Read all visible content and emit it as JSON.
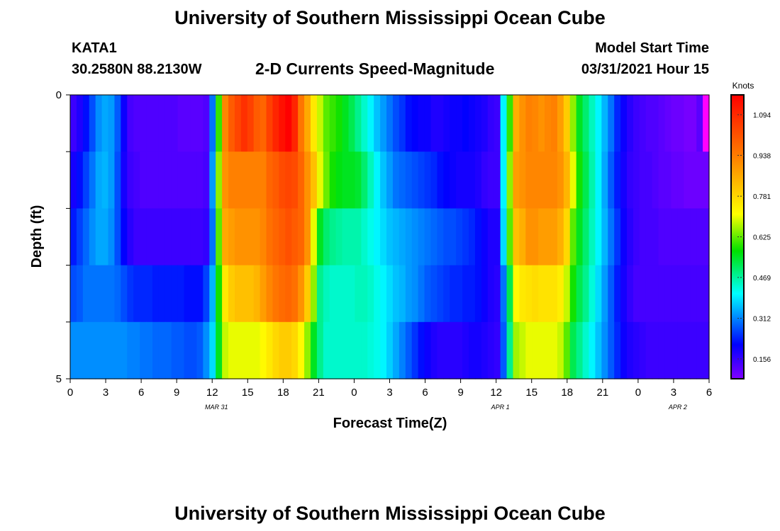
{
  "header": {
    "title": "University of Southern Mississippi Ocean Cube",
    "station": "KATA1",
    "coords": "30.2580N  88.2130W",
    "subtitle": "2-D Currents Speed-Magnitude",
    "model_label": "Model Start Time",
    "model_time": "03/31/2021 Hour 15"
  },
  "footer": {
    "title": "University of Southern Mississippi Ocean Cube"
  },
  "chart_data": {
    "type": "heatmap",
    "title": "2-D Currents Speed-Magnitude",
    "xlabel": "Forecast Time(Z)",
    "ylabel": "Depth (ft)",
    "x_tick_values": [
      0,
      3,
      6,
      9,
      12,
      15,
      18,
      21,
      24,
      27,
      30,
      33,
      36,
      39,
      42,
      45,
      48,
      51,
      54
    ],
    "x_tick_labels": [
      "0",
      "3",
      "6",
      "9",
      "12",
      "15",
      "18",
      "21",
      "0",
      "3",
      "6",
      "9",
      "12",
      "15",
      "18",
      "21",
      "0",
      "3",
      "6"
    ],
    "date_labels": [
      {
        "hour": 12,
        "label": "MAR 31"
      },
      {
        "hour": 36,
        "label": "APR 1"
      },
      {
        "hour": 51,
        "label": "APR 2"
      }
    ],
    "xlim": [
      0,
      54
    ],
    "y_tick_labels": [
      "0",
      "5"
    ],
    "ylim": [
      0,
      5
    ],
    "depth_rows": [
      0,
      1,
      2,
      3,
      4
    ],
    "row_height_ft": 1,
    "hours_per_column": 1,
    "colorbar": {
      "label": "Knots",
      "min": 0.08,
      "max": 1.17,
      "ticks": [
        0.156,
        0.312,
        0.469,
        0.625,
        0.781,
        0.938,
        1.094
      ],
      "tick_labels": [
        "0.156",
        "0.312",
        "0.469",
        "0.625",
        "0.781",
        "0.938",
        "1.094"
      ]
    },
    "speed_knots": [
      [
        0.15,
        0.18,
        0.22,
        0.27,
        0.32,
        0.34,
        0.33,
        0.28,
        0.2,
        0.14,
        0.13,
        0.13,
        0.13,
        0.13,
        0.13,
        0.13,
        0.13,
        0.12,
        0.12,
        0.12,
        0.12,
        0.13,
        0.3,
        0.6,
        0.92,
        1.0,
        1.04,
        1.08,
        1.05,
        1.0,
        0.98,
        1.05,
        1.1,
        1.14,
        1.18,
        1.1,
        0.95,
        0.86,
        0.75,
        0.68,
        0.62,
        0.6,
        0.58,
        0.55,
        0.52,
        0.48,
        0.44,
        0.4,
        0.36,
        0.33,
        0.3,
        0.27,
        0.25,
        0.22,
        0.21,
        0.2,
        0.2,
        0.18,
        0.18,
        0.19,
        0.2,
        0.2,
        0.21,
        0.2,
        0.19,
        0.18,
        0.16,
        0.15,
        0.4,
        0.6,
        0.85,
        0.9,
        0.93,
        0.92,
        0.9,
        0.92,
        0.93,
        0.88,
        0.8,
        0.65,
        0.55,
        0.5,
        0.45,
        0.4,
        0.35,
        0.3,
        0.24,
        0.2,
        0.17,
        0.15,
        0.14,
        0.13,
        0.13,
        0.12,
        0.11,
        0.1,
        0.1,
        0.09,
        0.09,
        0.12,
        0.05
      ],
      [
        0.19,
        0.22,
        0.26,
        0.3,
        0.34,
        0.35,
        0.33,
        0.27,
        0.19,
        0.15,
        0.14,
        0.13,
        0.13,
        0.13,
        0.13,
        0.13,
        0.13,
        0.13,
        0.13,
        0.13,
        0.13,
        0.14,
        0.33,
        0.65,
        0.9,
        0.93,
        0.93,
        0.93,
        0.93,
        0.93,
        0.93,
        0.98,
        1.0,
        1.03,
        1.04,
        1.03,
        0.98,
        0.9,
        0.82,
        0.7,
        0.63,
        0.58,
        0.56,
        0.55,
        0.55,
        0.54,
        0.5,
        0.45,
        0.4,
        0.36,
        0.33,
        0.3,
        0.29,
        0.28,
        0.27,
        0.26,
        0.25,
        0.24,
        0.22,
        0.21,
        0.2,
        0.19,
        0.19,
        0.19,
        0.18,
        0.16,
        0.15,
        0.15,
        0.4,
        0.65,
        0.88,
        0.9,
        0.92,
        0.92,
        0.92,
        0.92,
        0.92,
        0.9,
        0.84,
        0.7,
        0.58,
        0.52,
        0.46,
        0.4,
        0.34,
        0.28,
        0.23,
        0.19,
        0.16,
        0.15,
        0.14,
        0.14,
        0.13,
        0.12,
        0.12,
        0.11,
        0.11,
        0.1,
        0.1,
        0.1,
        0.1
      ],
      [
        0.23,
        0.26,
        0.29,
        0.32,
        0.34,
        0.34,
        0.32,
        0.27,
        0.21,
        0.17,
        0.15,
        0.15,
        0.15,
        0.15,
        0.15,
        0.15,
        0.15,
        0.15,
        0.15,
        0.15,
        0.15,
        0.16,
        0.3,
        0.62,
        0.86,
        0.88,
        0.9,
        0.9,
        0.9,
        0.9,
        0.92,
        0.96,
        0.98,
        1.0,
        1.02,
        1.0,
        0.98,
        0.9,
        0.7,
        0.55,
        0.5,
        0.48,
        0.47,
        0.46,
        0.46,
        0.46,
        0.44,
        0.42,
        0.4,
        0.38,
        0.36,
        0.35,
        0.34,
        0.33,
        0.32,
        0.31,
        0.3,
        0.29,
        0.28,
        0.27,
        0.27,
        0.26,
        0.25,
        0.24,
        0.22,
        0.2,
        0.18,
        0.18,
        0.38,
        0.62,
        0.82,
        0.85,
        0.9,
        0.9,
        0.88,
        0.88,
        0.88,
        0.85,
        0.78,
        0.62,
        0.55,
        0.5,
        0.45,
        0.4,
        0.35,
        0.3,
        0.25,
        0.2,
        0.17,
        0.15,
        0.14,
        0.14,
        0.14,
        0.13,
        0.13,
        0.13,
        0.13,
        0.13,
        0.13,
        0.13,
        0.13
      ],
      [
        0.27,
        0.28,
        0.3,
        0.3,
        0.3,
        0.3,
        0.3,
        0.29,
        0.27,
        0.25,
        0.24,
        0.24,
        0.24,
        0.23,
        0.23,
        0.23,
        0.23,
        0.23,
        0.22,
        0.22,
        0.22,
        0.26,
        0.35,
        0.58,
        0.75,
        0.8,
        0.82,
        0.82,
        0.82,
        0.84,
        0.88,
        0.92,
        0.95,
        0.97,
        0.98,
        0.96,
        0.9,
        0.8,
        0.65,
        0.48,
        0.45,
        0.44,
        0.44,
        0.44,
        0.44,
        0.45,
        0.45,
        0.44,
        0.42,
        0.4,
        0.38,
        0.36,
        0.35,
        0.33,
        0.32,
        0.3,
        0.28,
        0.27,
        0.26,
        0.25,
        0.24,
        0.24,
        0.23,
        0.23,
        0.22,
        0.2,
        0.18,
        0.17,
        0.3,
        0.52,
        0.72,
        0.75,
        0.76,
        0.77,
        0.76,
        0.76,
        0.76,
        0.74,
        0.68,
        0.58,
        0.52,
        0.48,
        0.43,
        0.38,
        0.33,
        0.28,
        0.23,
        0.19,
        0.16,
        0.14,
        0.14,
        0.14,
        0.14,
        0.14,
        0.14,
        0.14,
        0.14,
        0.14,
        0.14,
        0.14,
        0.14
      ],
      [
        0.32,
        0.32,
        0.32,
        0.32,
        0.32,
        0.32,
        0.32,
        0.32,
        0.32,
        0.31,
        0.31,
        0.3,
        0.3,
        0.29,
        0.29,
        0.29,
        0.28,
        0.28,
        0.27,
        0.27,
        0.28,
        0.32,
        0.38,
        0.55,
        0.68,
        0.7,
        0.7,
        0.7,
        0.7,
        0.7,
        0.72,
        0.75,
        0.78,
        0.8,
        0.8,
        0.78,
        0.72,
        0.65,
        0.55,
        0.48,
        0.44,
        0.44,
        0.44,
        0.44,
        0.44,
        0.44,
        0.44,
        0.43,
        0.42,
        0.4,
        0.37,
        0.34,
        0.31,
        0.28,
        0.25,
        0.22,
        0.2,
        0.18,
        0.17,
        0.17,
        0.17,
        0.17,
        0.18,
        0.19,
        0.19,
        0.18,
        0.17,
        0.16,
        0.28,
        0.48,
        0.66,
        0.68,
        0.7,
        0.7,
        0.7,
        0.7,
        0.7,
        0.68,
        0.62,
        0.52,
        0.48,
        0.44,
        0.4,
        0.36,
        0.32,
        0.28,
        0.24,
        0.2,
        0.18,
        0.17,
        0.16,
        0.15,
        0.15,
        0.15,
        0.15,
        0.15,
        0.15,
        0.15,
        0.15,
        0.15,
        0.15
      ]
    ]
  }
}
